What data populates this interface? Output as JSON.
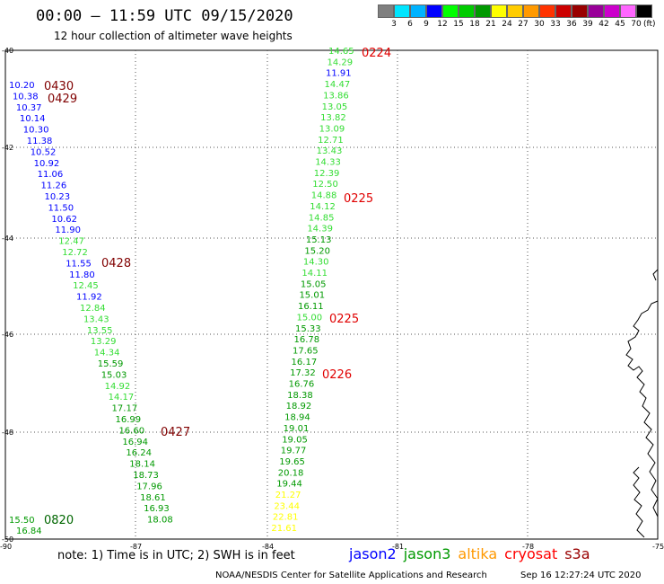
{
  "header": {
    "title": "00:00 – 11:59 UTC 09/15/2020",
    "subtitle": "12 hour collection of altimeter wave heights"
  },
  "colorbar": {
    "unit": "(ft)",
    "ticks": [
      "3",
      "6",
      "9",
      "12",
      "15",
      "18",
      "21",
      "24",
      "27",
      "30",
      "33",
      "36",
      "39",
      "42",
      "45",
      "70"
    ],
    "colors": [
      "#7f7f7f",
      "#00e5ff",
      "#00b3ff",
      "#0000ff",
      "#00ff00",
      "#00cc00",
      "#009900",
      "#ffff00",
      "#ffcc00",
      "#ff9900",
      "#ff3300",
      "#cc0000",
      "#990000",
      "#990099",
      "#cc00cc",
      "#ff66ff",
      "#000000"
    ]
  },
  "axes": {
    "lat_labels": [
      "-40",
      "-42",
      "-44",
      "-46",
      "-48",
      "-50"
    ],
    "lon_labels": [
      "-90",
      "-87",
      "-84",
      "-81",
      "-78",
      "-75"
    ]
  },
  "tracks": {
    "left": [
      {
        "v": "10.20",
        "c": "#0000ff"
      },
      {
        "v": "10.38",
        "c": "#0000ff"
      },
      {
        "v": "10.37",
        "c": "#0000ff"
      },
      {
        "v": "10.14",
        "c": "#0000ff"
      },
      {
        "v": "10.30",
        "c": "#0000ff"
      },
      {
        "v": "11.38",
        "c": "#0000ff"
      },
      {
        "v": "10.52",
        "c": "#0000ff"
      },
      {
        "v": "10.92",
        "c": "#0000ff"
      },
      {
        "v": "11.06",
        "c": "#0000ff"
      },
      {
        "v": "11.26",
        "c": "#0000ff"
      },
      {
        "v": "10.23",
        "c": "#0000ff"
      },
      {
        "v": "11.50",
        "c": "#0000ff"
      },
      {
        "v": "10.62",
        "c": "#0000ff"
      },
      {
        "v": "11.90",
        "c": "#0000ff"
      },
      {
        "v": "12.47",
        "c": "#33dd33"
      },
      {
        "v": "12.72",
        "c": "#33dd33"
      },
      {
        "v": "11.55",
        "c": "#0000ff"
      },
      {
        "v": "11.80",
        "c": "#0000ff"
      },
      {
        "v": "12.45",
        "c": "#33dd33"
      },
      {
        "v": "11.92",
        "c": "#0000ff"
      },
      {
        "v": "12.84",
        "c": "#33dd33"
      },
      {
        "v": "13.43",
        "c": "#33dd33"
      },
      {
        "v": "13.55",
        "c": "#33dd33"
      },
      {
        "v": "13.29",
        "c": "#33dd33"
      },
      {
        "v": "14.34",
        "c": "#33dd33"
      },
      {
        "v": "15.59",
        "c": "#009900"
      },
      {
        "v": "15.03",
        "c": "#009900"
      },
      {
        "v": "14.92",
        "c": "#33dd33"
      },
      {
        "v": "14.17",
        "c": "#33dd33"
      },
      {
        "v": "17.17",
        "c": "#009900"
      },
      {
        "v": "16.99",
        "c": "#009900"
      },
      {
        "v": "16.60",
        "c": "#009900"
      },
      {
        "v": "16.94",
        "c": "#009900"
      },
      {
        "v": "16.24",
        "c": "#009900"
      },
      {
        "v": "18.14",
        "c": "#009900"
      },
      {
        "v": "18.73",
        "c": "#009900"
      },
      {
        "v": "17.96",
        "c": "#009900"
      },
      {
        "v": "18.61",
        "c": "#009900"
      },
      {
        "v": "16.93",
        "c": "#009900"
      },
      {
        "v": "18.08",
        "c": "#009900"
      },
      {
        "v": "15.50",
        "c": "#009900"
      },
      {
        "v": "16.84",
        "c": "#009900"
      }
    ],
    "right": [
      {
        "v": "14.65",
        "c": "#33dd33"
      },
      {
        "v": "14.29",
        "c": "#33dd33"
      },
      {
        "v": "11.91",
        "c": "#0000ff"
      },
      {
        "v": "14.47",
        "c": "#33dd33"
      },
      {
        "v": "13.86",
        "c": "#33dd33"
      },
      {
        "v": "13.05",
        "c": "#33dd33"
      },
      {
        "v": "13.82",
        "c": "#33dd33"
      },
      {
        "v": "13.09",
        "c": "#33dd33"
      },
      {
        "v": "12.71",
        "c": "#33dd33"
      },
      {
        "v": "13.43",
        "c": "#33dd33"
      },
      {
        "v": "14.33",
        "c": "#33dd33"
      },
      {
        "v": "12.39",
        "c": "#33dd33"
      },
      {
        "v": "12.50",
        "c": "#33dd33"
      },
      {
        "v": "14.88",
        "c": "#33dd33"
      },
      {
        "v": "14.12",
        "c": "#33dd33"
      },
      {
        "v": "14.85",
        "c": "#33dd33"
      },
      {
        "v": "14.39",
        "c": "#33dd33"
      },
      {
        "v": "15.13",
        "c": "#009900"
      },
      {
        "v": "15.20",
        "c": "#009900"
      },
      {
        "v": "14.30",
        "c": "#33dd33"
      },
      {
        "v": "14.11",
        "c": "#33dd33"
      },
      {
        "v": "15.05",
        "c": "#009900"
      },
      {
        "v": "15.01",
        "c": "#009900"
      },
      {
        "v": "16.11",
        "c": "#009900"
      },
      {
        "v": "15.00",
        "c": "#33dd33"
      },
      {
        "v": "15.33",
        "c": "#009900"
      },
      {
        "v": "16.78",
        "c": "#009900"
      },
      {
        "v": "17.65",
        "c": "#009900"
      },
      {
        "v": "16.17",
        "c": "#009900"
      },
      {
        "v": "17.32",
        "c": "#009900"
      },
      {
        "v": "16.76",
        "c": "#009900"
      },
      {
        "v": "18.38",
        "c": "#009900"
      },
      {
        "v": "18.92",
        "c": "#009900"
      },
      {
        "v": "18.94",
        "c": "#009900"
      },
      {
        "v": "19.01",
        "c": "#009900"
      },
      {
        "v": "19.05",
        "c": "#009900"
      },
      {
        "v": "19.77",
        "c": "#009900"
      },
      {
        "v": "19.65",
        "c": "#009900"
      },
      {
        "v": "20.18",
        "c": "#009900"
      },
      {
        "v": "19.44",
        "c": "#009900"
      },
      {
        "v": "21.27",
        "c": "#ffff00"
      },
      {
        "v": "23.44",
        "c": "#ffff00"
      },
      {
        "v": "22.81",
        "c": "#ffff00"
      },
      {
        "v": "21.61",
        "c": "#ffff00"
      }
    ]
  },
  "pass_times": [
    {
      "t": "0224",
      "c": "#e00000"
    },
    {
      "t": "0225",
      "c": "#e00000"
    },
    {
      "t": "0225",
      "c": "#e00000"
    },
    {
      "t": "0226",
      "c": "#e00000"
    },
    {
      "t": "0430",
      "c": "#800000"
    },
    {
      "t": "0429",
      "c": "#800000"
    },
    {
      "t": "0428",
      "c": "#800000"
    },
    {
      "t": "0427",
      "c": "#800000"
    },
    {
      "t": "0820",
      "c": "#006600"
    }
  ],
  "note": "note: 1) Time is in UTC; 2) SWH is in feet",
  "legend": [
    {
      "name": "jason2",
      "color": "#0000ff"
    },
    {
      "name": "jason3",
      "color": "#009900"
    },
    {
      "name": "altika",
      "color": "#ff9900"
    },
    {
      "name": "cryosat",
      "color": "#ff0000"
    },
    {
      "name": "s3a",
      "color": "#990000"
    }
  ],
  "footer": {
    "credit": "NOAA/NESDIS Center for Satellite Applications and Research",
    "timestamp": "Sep 16 12:27:24 UTC 2020"
  }
}
